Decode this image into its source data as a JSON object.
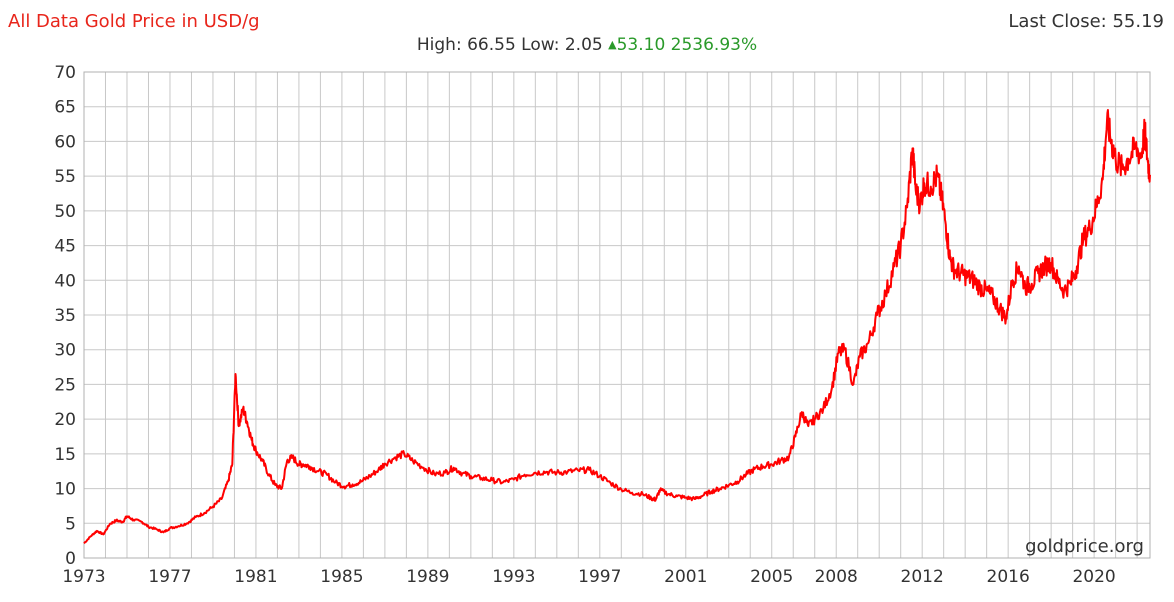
{
  "header": {
    "title": "All Data Gold Price in USD/g",
    "last_close_label": "Last Close:",
    "last_close_value": "55.19",
    "high_label": "High:",
    "high_value": "66.55",
    "low_label": "Low:",
    "low_value": "2.05",
    "change_value": "53.10",
    "change_pct": "2536.93%"
  },
  "watermark": "goldprice.org",
  "colors": {
    "title": "#e8251b",
    "line": "#ff0000",
    "up": "#2a9a2a",
    "grid": "#c8c8c8"
  },
  "chart_data": {
    "type": "line",
    "title": "All Data Gold Price in USD/g",
    "xlabel": "",
    "ylabel": "",
    "xlim": [
      1973,
      2022.6
    ],
    "ylim": [
      0,
      70
    ],
    "y_ticks": [
      0,
      5,
      10,
      15,
      20,
      25,
      30,
      35,
      40,
      45,
      50,
      55,
      60,
      65,
      70
    ],
    "x_ticks": [
      1973,
      1977,
      1981,
      1985,
      1989,
      1993,
      1997,
      2001,
      2005,
      2008,
      2012,
      2016,
      2020
    ],
    "grid": true,
    "legend": "none",
    "series": [
      {
        "x": [
          1973.0,
          1973.3,
          1973.6,
          1973.9,
          1974.2,
          1974.5,
          1974.8,
          1975.0,
          1975.3,
          1975.7,
          1976.0,
          1976.4,
          1976.7,
          1977.0,
          1977.4,
          1977.8,
          1978.2,
          1978.6,
          1979.0,
          1979.4,
          1979.7,
          1979.9,
          1980.05,
          1980.2,
          1980.4,
          1980.6,
          1980.8,
          1981.0,
          1981.3,
          1981.6,
          1981.9,
          1982.2,
          1982.45,
          1982.7,
          1983.0,
          1983.2,
          1983.5,
          1983.9,
          1984.3,
          1984.7,
          1985.1,
          1985.5,
          1985.9,
          1986.3,
          1986.7,
          1987.0,
          1987.5,
          1987.9,
          1988.3,
          1988.8,
          1989.3,
          1989.8,
          1990.2,
          1990.6,
          1991.0,
          1991.5,
          1992.0,
          1992.5,
          1993.0,
          1993.5,
          1994.0,
          1994.5,
          1995.0,
          1995.5,
          1996.0,
          1996.5,
          1997.0,
          1997.5,
          1998.0,
          1998.5,
          1999.0,
          1999.4,
          1999.6,
          1999.8,
          2000.2,
          2000.6,
          2001.0,
          2001.4,
          2001.8,
          2002.2,
          2002.6,
          2003.0,
          2003.4,
          2003.8,
          2004.2,
          2004.6,
          2005.0,
          2005.4,
          2005.8,
          2006.1,
          2006.4,
          2006.7,
          2007.0,
          2007.4,
          2007.8,
          2008.1,
          2008.4,
          2008.8,
          2009.1,
          2009.5,
          2009.9,
          2010.3,
          2010.7,
          2011.0,
          2011.3,
          2011.55,
          2011.7,
          2011.9,
          2012.1,
          2012.4,
          2012.7,
          2012.9,
          2013.1,
          2013.3,
          2013.5,
          2013.8,
          2014.1,
          2014.4,
          2014.7,
          2015.0,
          2015.3,
          2015.6,
          2015.9,
          2016.2,
          2016.5,
          2016.8,
          2017.1,
          2017.4,
          2017.7,
          2018.0,
          2018.3,
          2018.6,
          2018.9,
          2019.2,
          2019.5,
          2019.8,
          2020.1,
          2020.4,
          2020.6,
          2020.8,
          2021.0,
          2021.3,
          2021.6,
          2021.9,
          2022.2,
          2022.35,
          2022.5,
          2022.6
        ],
        "values": [
          2.1,
          3.1,
          3.9,
          3.4,
          4.9,
          5.4,
          5.2,
          6.0,
          5.5,
          5.2,
          4.5,
          4.1,
          3.7,
          4.3,
          4.6,
          5.0,
          5.9,
          6.5,
          7.4,
          8.5,
          11.0,
          13.5,
          26.5,
          19.0,
          21.5,
          19.5,
          17.0,
          15.5,
          14.0,
          12.0,
          10.5,
          10.0,
          14.0,
          14.5,
          13.5,
          13.5,
          13.2,
          12.5,
          12.0,
          10.9,
          10.3,
          10.6,
          11.0,
          11.8,
          12.7,
          13.6,
          14.5,
          15.0,
          14.0,
          13.0,
          12.1,
          12.3,
          13.0,
          12.2,
          11.8,
          11.5,
          11.2,
          10.9,
          11.3,
          12.0,
          12.3,
          12.4,
          12.3,
          12.4,
          12.6,
          12.7,
          11.8,
          10.8,
          9.9,
          9.4,
          9.2,
          8.6,
          8.4,
          9.8,
          9.2,
          8.9,
          8.7,
          8.5,
          9.0,
          9.6,
          10.0,
          10.5,
          11.0,
          12.0,
          12.8,
          13.2,
          13.5,
          14.0,
          14.5,
          17.5,
          21.0,
          19.0,
          20.0,
          21.5,
          24.5,
          29.5,
          30.0,
          25.0,
          29.0,
          31.0,
          35.0,
          38.0,
          42.0,
          45.0,
          50.5,
          59.0,
          53.0,
          51.0,
          54.0,
          53.5,
          55.0,
          52.0,
          48.0,
          43.0,
          41.5,
          41.0,
          40.5,
          40.0,
          39.0,
          38.5,
          37.5,
          36.0,
          34.5,
          40.0,
          42.0,
          39.0,
          39.5,
          41.0,
          42.0,
          42.5,
          40.0,
          38.5,
          39.5,
          42.0,
          46.0,
          47.5,
          50.5,
          54.5,
          63.0,
          60.0,
          57.5,
          56.0,
          57.5,
          59.0,
          58.0,
          61.5,
          57.0,
          55.2
        ]
      }
    ]
  }
}
